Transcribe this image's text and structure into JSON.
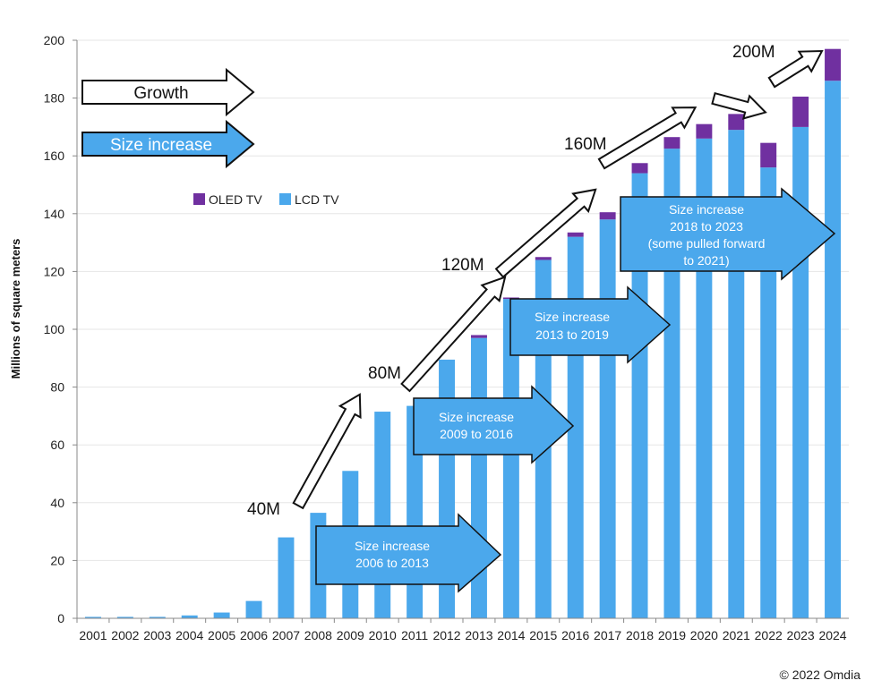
{
  "chart_data": {
    "type": "bar",
    "stacked": true,
    "ylabel": "Millions of square meters",
    "ylim": [
      0,
      200
    ],
    "yticks": [
      0,
      20,
      40,
      60,
      80,
      100,
      120,
      140,
      160,
      180,
      200
    ],
    "categories": [
      "2001",
      "2002",
      "2003",
      "2004",
      "2005",
      "2006",
      "2007",
      "2008",
      "2009",
      "2010",
      "2011",
      "2012",
      "2013",
      "2014",
      "2015",
      "2016",
      "2017",
      "2018",
      "2019",
      "2020",
      "2021",
      "2022",
      "2023",
      "2024"
    ],
    "series": [
      {
        "name": "LCD TV",
        "color": "#4BA8EC",
        "values": [
          0.5,
          0.5,
          0.5,
          1,
          2,
          6,
          28,
          36.5,
          51,
          71.5,
          73.5,
          89.5,
          97,
          110.5,
          124,
          132,
          138,
          154,
          162.5,
          166,
          169,
          156,
          170,
          186
        ]
      },
      {
        "name": "OLED TV",
        "color": "#7030A0",
        "values": [
          0,
          0,
          0,
          0,
          0,
          0,
          0,
          0,
          0,
          0,
          0,
          0,
          1,
          0.5,
          1,
          1.5,
          2.5,
          3.5,
          4,
          5,
          5.5,
          8.5,
          10.5,
          11
        ]
      }
    ],
    "legend": {
      "position": "upper-left",
      "entries": [
        "OLED TV",
        "LCD TV"
      ]
    },
    "annotations": {
      "key": [
        {
          "label": "Growth",
          "style": "white-arrow"
        },
        {
          "label": "Size increase",
          "style": "blue-arrow"
        }
      ],
      "milestones": [
        "40M",
        "80M",
        "120M",
        "160M",
        "200M"
      ],
      "size_boxes": [
        {
          "line1": "Size increase",
          "line2": "2006 to 2013",
          "line3": "",
          "line4": ""
        },
        {
          "line1": "Size increase",
          "line2": "2009 to 2016",
          "line3": "",
          "line4": ""
        },
        {
          "line1": "Size increase",
          "line2": "2013 to 2019",
          "line3": "",
          "line4": ""
        },
        {
          "line1": "Size increase",
          "line2": "2018 to 2023",
          "line3": "(some pulled forward",
          "line4": "to 2021)"
        }
      ]
    },
    "credit": "© 2022 Omdia"
  }
}
